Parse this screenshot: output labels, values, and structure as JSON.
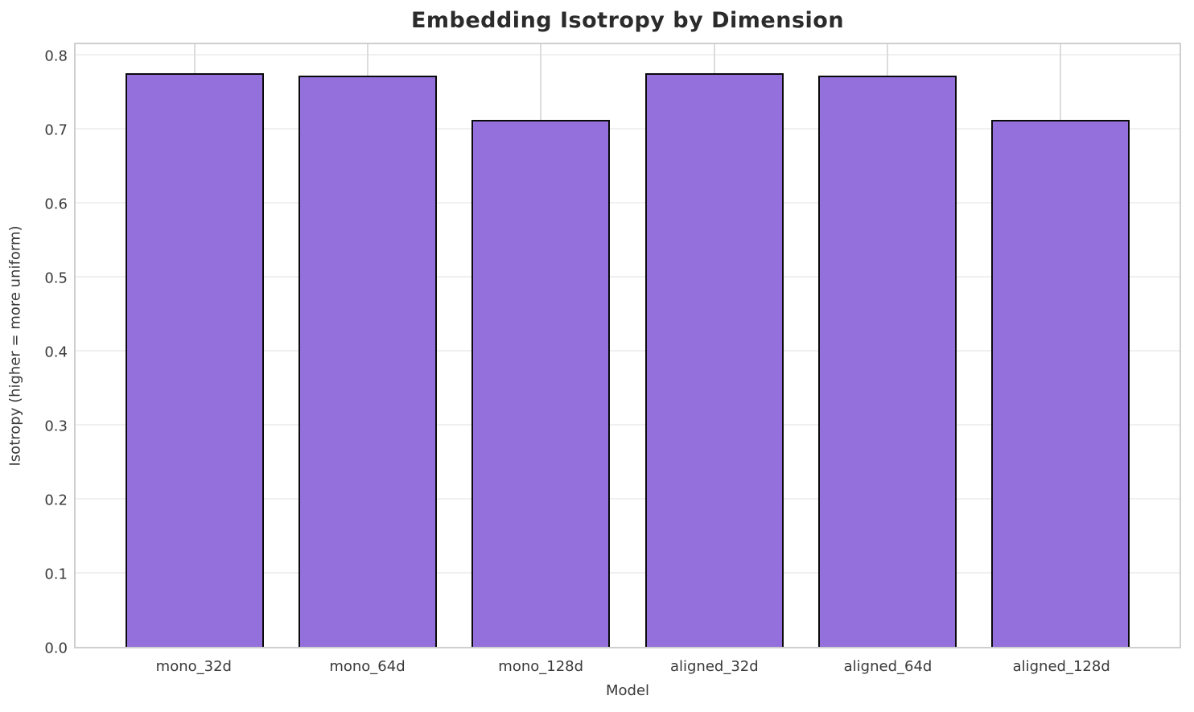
{
  "chart_data": {
    "type": "bar",
    "title": "Embedding Isotropy by Dimension",
    "xlabel": "Model",
    "ylabel": "Isotropy (higher = more uniform)",
    "categories": [
      "mono_32d",
      "mono_64d",
      "mono_128d",
      "aligned_32d",
      "aligned_64d",
      "aligned_128d"
    ],
    "values": [
      0.779,
      0.775,
      0.715,
      0.779,
      0.775,
      0.715
    ],
    "ylim": [
      0,
      0.818
    ],
    "yticks": [
      0.0,
      0.1,
      0.2,
      0.3,
      0.4,
      0.5,
      0.6,
      0.7,
      0.8
    ],
    "ytick_labels": [
      "0.0",
      "0.1",
      "0.2",
      "0.3",
      "0.4",
      "0.5",
      "0.6",
      "0.7",
      "0.8"
    ],
    "grid": "both",
    "legend": "none",
    "layout": {
      "bar_width_fraction": 0.8,
      "x_units_span": 6.38,
      "x_left_offset_units": 0.69
    },
    "colors": {
      "bar_fill": "#9370DB",
      "bar_edge": "#0a0a0a",
      "grid_horizontal": "#f0f0f0",
      "grid_vertical": "#dcdcdc",
      "spine": "#cfcfcf",
      "title_text": "#2b2b2b",
      "tick_text": "#3a3a3a",
      "background": "#ffffff"
    }
  }
}
